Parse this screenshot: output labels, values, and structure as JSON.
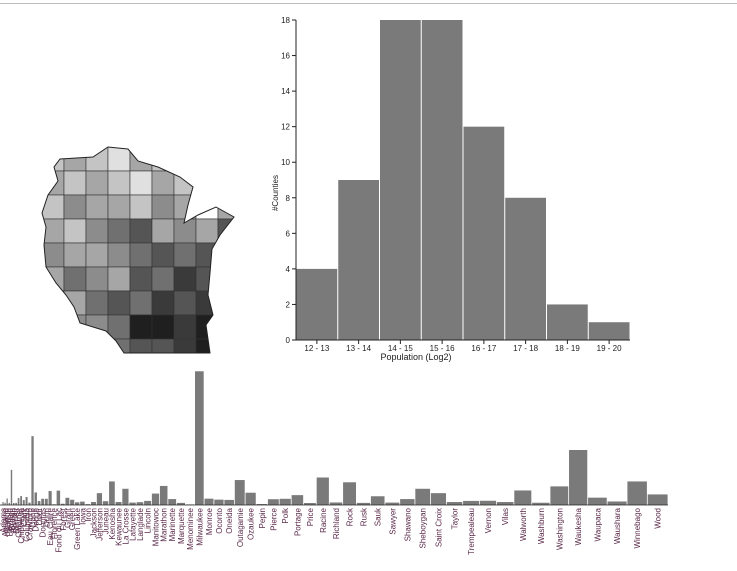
{
  "histogram": {
    "xlabel": "Population (Log2)",
    "ylabel": "#Counties",
    "fill": "#7a7a7a"
  },
  "map": {
    "shades": [
      "#ffffff",
      "#e0e0e0",
      "#c4c4c4",
      "#a6a6a6",
      "#8c8c8c",
      "#707070",
      "#555555",
      "#3a3a3a",
      "#1f1f1f",
      "#000000"
    ]
  },
  "county_bars": {
    "fill": "#7a7a7a",
    "label_color": "#5b2a4a"
  },
  "chart_data": [
    {
      "type": "bar",
      "xlabel": "Population (Log2)",
      "ylabel": "#Counties",
      "categories": [
        "12 - 13",
        "13 - 14",
        "14 - 15",
        "15 - 16",
        "16 - 17",
        "17 - 18",
        "18 - 19",
        "19 - 20"
      ],
      "values": [
        4,
        9,
        18,
        18,
        12,
        8,
        2,
        1
      ],
      "ylim": [
        0,
        18
      ],
      "yticks": [
        0,
        2,
        4,
        6,
        8,
        10,
        12,
        14,
        16,
        18
      ],
      "grid": false,
      "legend": "none"
    },
    {
      "type": "bar",
      "categories": [
        "Adams",
        "Ashland",
        "Barron",
        "Bayfield",
        "Brown",
        "Buffalo",
        "Burnett",
        "Calumet",
        "Chippewa",
        "Clark",
        "Columbia",
        "Crawford",
        "Dane",
        "Dodge",
        "Door",
        "Douglas",
        "Dunn",
        "Eau Claire",
        "Florence",
        "Fond du Lac",
        "Forest",
        "Grant",
        "Green",
        "Green Lake",
        "Iowa",
        "Iron",
        "Jackson",
        "Jefferson",
        "Juneau",
        "Kenosha",
        "Kewaunee",
        "La Crosse",
        "Lafayette",
        "Langlade",
        "Lincoln",
        "Manitowoc",
        "Marathon",
        "Marinette",
        "Marquette",
        "Menominee",
        "Milwaukee",
        "Monroe",
        "Oconto",
        "Oneida",
        "Outagamie",
        "Ozaukee",
        "Pepin",
        "Pierce",
        "Polk",
        "Portage",
        "Price",
        "Racine",
        "Richland",
        "Rock",
        "Rusk",
        "Sauk",
        "Sawyer",
        "Shawano",
        "Sheboygan",
        "Saint Croix",
        "Taylor",
        "Trempealeau",
        "Vernon",
        "Vilas",
        "Walworth",
        "Washburn",
        "Washington",
        "Waukesha",
        "Waupaca",
        "Waushara",
        "Winnebago",
        "Wood"
      ],
      "values": [
        21,
        16,
        46,
        15,
        249,
        14,
        15,
        49,
        63,
        35,
        57,
        17,
        488,
        89,
        28,
        44,
        44,
        99,
        5,
        102,
        9,
        51,
        37,
        19,
        24,
        6,
        21,
        84,
        27,
        167,
        21,
        115,
        17,
        20,
        29,
        81,
        135,
        42,
        15,
        4,
        948,
        45,
        38,
        36,
        177,
        87,
        7,
        41,
        44,
        70,
        14,
        195,
        18,
        161,
        15,
        62,
        17,
        42,
        115,
        84,
        21,
        29,
        30,
        21,
        103,
        16,
        132,
        390,
        52,
        25,
        167,
        75
      ],
      "ylim": [
        0,
        950
      ],
      "grid": false,
      "legend": "none"
    }
  ]
}
